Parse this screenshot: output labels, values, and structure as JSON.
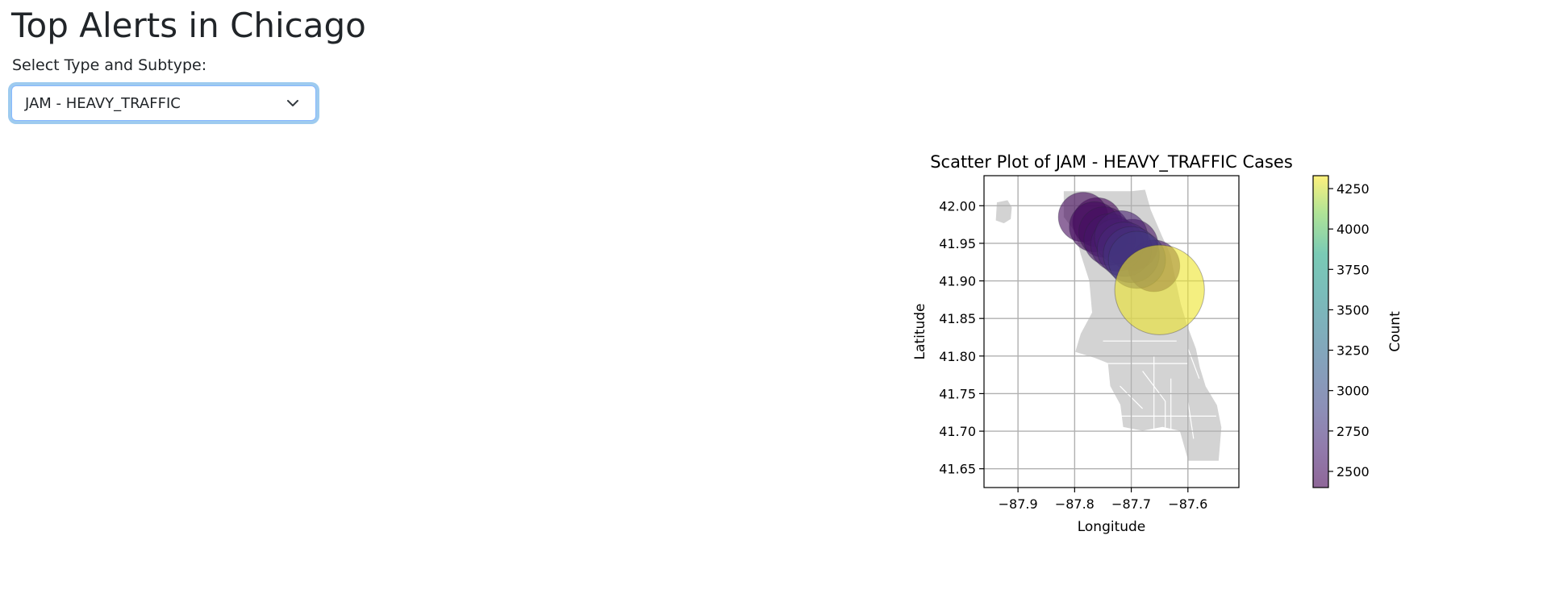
{
  "page": {
    "title": "Top Alerts in Chicago",
    "select_label": "Select Type and Subtype:",
    "selected_value": "JAM - HEAVY_TRAFFIC"
  },
  "colors": {
    "map_fill": "#d3d3d3",
    "map_stroke": "#ffffff",
    "grid": "#b0b0b0",
    "select_border": "#86b7fe"
  },
  "icons": {
    "select_arrow": "chevron-down-icon"
  },
  "chart_data": {
    "type": "scatter",
    "title": "Scatter Plot of JAM - HEAVY_TRAFFIC Cases",
    "xlabel": "Longitude",
    "ylabel": "Latitude",
    "xlim": [
      -87.96,
      -87.51
    ],
    "ylim": [
      41.625,
      42.04
    ],
    "xticks": [
      -87.9,
      -87.8,
      -87.7,
      -87.6
    ],
    "yticks": [
      41.65,
      41.7,
      41.75,
      41.8,
      41.85,
      41.9,
      41.95,
      42.0
    ],
    "grid": true,
    "point_alpha": 0.6,
    "background": "Chicago neighborhood boundaries map",
    "colorbar": {
      "label": "Count",
      "colormap": "viridis",
      "range": [
        2400,
        4330
      ],
      "ticks": [
        2500,
        2750,
        3000,
        3250,
        3500,
        3750,
        4000,
        4250
      ]
    },
    "points": [
      {
        "lon": -87.785,
        "lat": 41.985,
        "count": 2450
      },
      {
        "lon": -87.765,
        "lat": 41.972,
        "count": 2480
      },
      {
        "lon": -87.748,
        "lat": 41.965,
        "count": 2500
      },
      {
        "lon": -87.738,
        "lat": 41.955,
        "count": 2550
      },
      {
        "lon": -87.725,
        "lat": 41.948,
        "count": 2600
      },
      {
        "lon": -87.718,
        "lat": 41.958,
        "count": 2620
      },
      {
        "lon": -87.712,
        "lat": 41.942,
        "count": 2680
      },
      {
        "lon": -87.7,
        "lat": 41.935,
        "count": 2750
      },
      {
        "lon": -87.69,
        "lat": 41.928,
        "count": 2800
      },
      {
        "lon": -87.65,
        "lat": 41.888,
        "count": 4300
      },
      {
        "lon": -87.66,
        "lat": 41.92,
        "count": 2550
      },
      {
        "lon": -87.698,
        "lat": 41.948,
        "count": 2520
      },
      {
        "lon": -87.76,
        "lat": 41.978,
        "count": 2430
      }
    ]
  }
}
